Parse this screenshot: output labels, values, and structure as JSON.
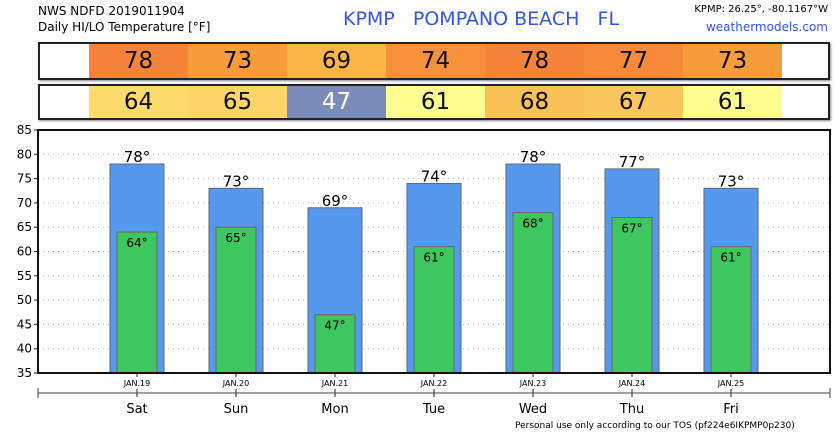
{
  "header": {
    "line1": "NWS NDFD 2019011904",
    "line2": "Daily HI/LO Temperature [°F]",
    "station_title": "KPMP   POMPANO BEACH   FL",
    "coords": "KPMP: 26.25°, -80.1167°W",
    "site": "weathermodels.com"
  },
  "footer": "Personal use only according to our TOS (pf224e6IKPMP0p230)",
  "high_colors": [
    "#f5833a",
    "#f89c3b",
    "#fbb446",
    "#f7903a",
    "#f5833a",
    "#f6893a",
    "#f89c3b"
  ],
  "low_colors": [
    "#fcdb6c",
    "#fcd56a",
    "#7a8bb9",
    "#fdfd90",
    "#fbc058",
    "#fbc55d",
    "#fdfd90"
  ],
  "chart_data": {
    "type": "bar",
    "title": "Daily HI/LO Temperature [°F]",
    "categories": [
      "Sat",
      "Sun",
      "Mon",
      "Tue",
      "Wed",
      "Thu",
      "Fri"
    ],
    "dates": [
      "JAN.19",
      "JAN.20",
      "JAN.21",
      "JAN.22",
      "JAN.23",
      "JAN.24",
      "JAN.25"
    ],
    "series": [
      {
        "name": "High",
        "color": "#5599ee",
        "values": [
          78,
          73,
          69,
          74,
          78,
          77,
          73
        ]
      },
      {
        "name": "Low",
        "color": "#3ec75f",
        "values": [
          64,
          65,
          47,
          61,
          68,
          67,
          61
        ]
      }
    ],
    "ylim": [
      35,
      85
    ],
    "yticks": [
      35,
      40,
      45,
      50,
      55,
      60,
      65,
      70,
      75,
      80,
      85
    ],
    "grid": true
  }
}
